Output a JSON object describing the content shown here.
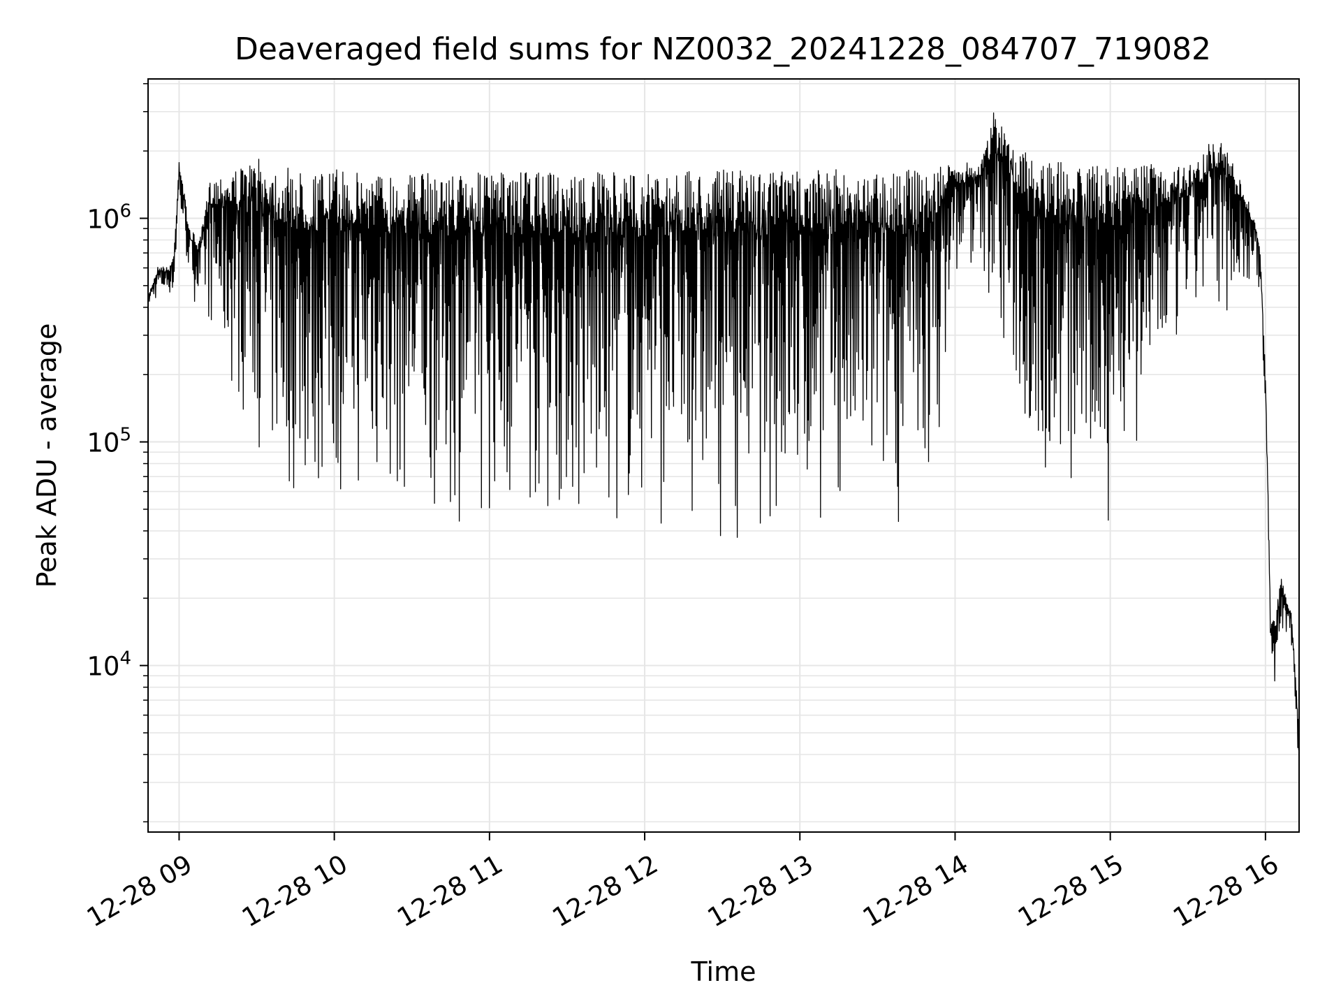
{
  "chart_data": {
    "type": "line",
    "title": "Deaveraged field sums for NZ0032_20241228_084707_719082",
    "xlabel": "Time",
    "ylabel": "Peak ADU - average",
    "yscale": "log",
    "grid": true,
    "grid_minor": true,
    "line_color": "#000000",
    "grid_color": "#e6e6e6",
    "xlim": [
      "2024-12-28 08:48",
      "2024-12-28 16:13"
    ],
    "ylim": [
      1800,
      4200000
    ],
    "x_ticks": [
      "2024-12-28 09:00",
      "2024-12-28 10:00",
      "2024-12-28 11:00",
      "2024-12-28 12:00",
      "2024-12-28 13:00",
      "2024-12-28 14:00",
      "2024-12-28 15:00",
      "2024-12-28 16:00"
    ],
    "x_tick_labels": [
      "12-28 09",
      "12-28 10",
      "12-28 11",
      "12-28 12",
      "12-28 13",
      "12-28 14",
      "12-28 15",
      "12-28 16"
    ],
    "y_ticks": [
      10000,
      100000,
      1000000
    ],
    "y_tick_base": "10",
    "y_tick_exponents": [
      "4",
      "5",
      "6"
    ],
    "series": [
      {
        "x": [
          "2024-12-28 08:48",
          "2024-12-28 08:52",
          "2024-12-28 08:56",
          "2024-12-28 08:58",
          "2024-12-28 09:00",
          "2024-12-28 09:04",
          "2024-12-28 09:08",
          "2024-12-28 09:12",
          "2024-12-28 09:16",
          "2024-12-28 09:20",
          "2024-12-28 09:25",
          "2024-12-28 09:30",
          "2024-12-28 09:35",
          "2024-12-28 09:40",
          "2024-12-28 09:50",
          "2024-12-28 10:00",
          "2024-12-28 10:30",
          "2024-12-28 11:00",
          "2024-12-28 11:30",
          "2024-12-28 11:36",
          "2024-12-28 12:00",
          "2024-12-28 12:30",
          "2024-12-28 13:00",
          "2024-12-28 13:30",
          "2024-12-28 13:50",
          "2024-12-28 14:00",
          "2024-12-28 14:10",
          "2024-12-28 14:15",
          "2024-12-28 14:30",
          "2024-12-28 14:45",
          "2024-12-28 15:00",
          "2024-12-28 15:15",
          "2024-12-28 15:30",
          "2024-12-28 15:42",
          "2024-12-28 15:50",
          "2024-12-28 15:56",
          "2024-12-28 15:58",
          "2024-12-28 16:00",
          "2024-12-28 16:01",
          "2024-12-28 16:02",
          "2024-12-28 16:04",
          "2024-12-28 16:06",
          "2024-12-28 16:08",
          "2024-12-28 16:10",
          "2024-12-28 16:12",
          "2024-12-28 16:13"
        ],
        "upper": [
          450000,
          620000,
          600000,
          700000,
          1900000,
          900000,
          800000,
          1500000,
          1600000,
          1650000,
          1700000,
          1850000,
          1800000,
          1700000,
          1600000,
          1650000,
          1600000,
          1600000,
          1600000,
          1600000,
          1600000,
          1650000,
          1650000,
          1650000,
          1650000,
          1750000,
          1800000,
          3000000,
          1800000,
          1800000,
          1700000,
          1750000,
          1700000,
          2400000,
          1500000,
          1000000,
          700000,
          200000,
          60000,
          15000,
          17000,
          25000,
          20000,
          18000,
          8000,
          5000
        ],
        "lower": [
          400000,
          430000,
          450000,
          420000,
          1000000,
          500000,
          350000,
          300000,
          200000,
          150000,
          120000,
          90000,
          60000,
          50000,
          45000,
          50000,
          45000,
          40000,
          40000,
          30000,
          40000,
          35000,
          35000,
          40000,
          40000,
          500000,
          600000,
          300000,
          60000,
          40000,
          40000,
          100000,
          300000,
          350000,
          400000,
          500000,
          450000,
          120000,
          40000,
          10000,
          7000,
          12000,
          13000,
          12000,
          5000,
          2500
        ]
      }
    ]
  }
}
